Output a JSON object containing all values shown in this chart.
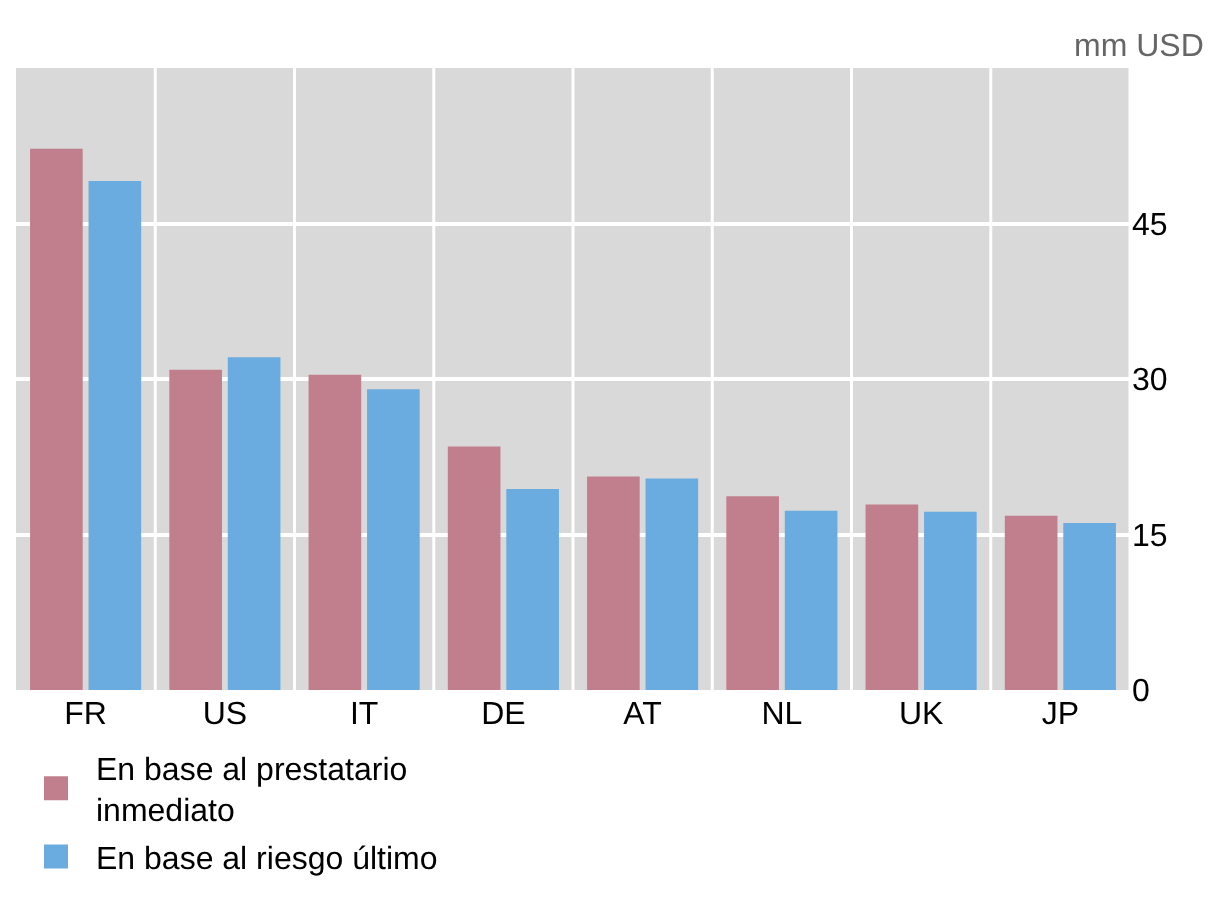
{
  "chart_data": {
    "type": "bar",
    "ylabel": "mm USD",
    "categories": [
      "FR",
      "US",
      "IT",
      "DE",
      "AT",
      "NL",
      "UK",
      "JP"
    ],
    "series": [
      {
        "name": "En base al prestatario inmediato",
        "color": "#c17f8d",
        "values": [
          52.2,
          30.9,
          30.4,
          23.5,
          20.6,
          18.7,
          17.9,
          16.8
        ]
      },
      {
        "name": "En base al riesgo último",
        "color": "#6aace0",
        "values": [
          49.1,
          32.1,
          29.0,
          19.4,
          20.4,
          17.3,
          17.2,
          16.1
        ]
      }
    ],
    "ylim": [
      0,
      60
    ],
    "yticks": [
      0,
      15,
      30,
      45
    ],
    "grid": true,
    "legend": "bottom"
  }
}
